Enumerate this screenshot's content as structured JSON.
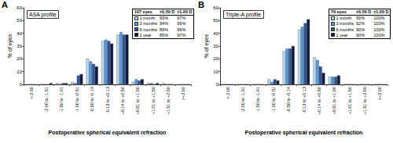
{
  "chart_data": [
    {
      "type": "bar",
      "panel_label": "A",
      "title": "ASA profile",
      "x_label": "Postoperative spherical equivalent refraction",
      "y_label": "% of eyes",
      "categories": [
        "<-2.00",
        "-2.00 to -1.51",
        "-1.50 to -1.01",
        "-1.00 to -0.51",
        "-0.50 to -0.14",
        "-0.13 to +0.13",
        "+0.14 to +0.50",
        "+0.51 to +1.00",
        "+1.01 to +1.50",
        "+1.51 to +2.00",
        ">+2.00"
      ],
      "series": [
        {
          "name": "1 month",
          "color": "#bdd7ee",
          "values": [
            0,
            0,
            1,
            2,
            20,
            34,
            39,
            2,
            1,
            1,
            0
          ]
        },
        {
          "name": "3 months",
          "color": "#5b9bd5",
          "values": [
            0,
            0,
            0,
            1,
            18,
            35,
            41,
            4,
            1,
            0,
            0
          ]
        },
        {
          "name": "6 months",
          "color": "#2f5597",
          "values": [
            0,
            0,
            1,
            7,
            16,
            34,
            39,
            3,
            0,
            0,
            0
          ]
        },
        {
          "name": "1 year",
          "color": "#0b1a45",
          "values": [
            0,
            1,
            1,
            8,
            14,
            32,
            39,
            4,
            1,
            0,
            0
          ]
        }
      ],
      "ylim": [
        0,
        60
      ],
      "yticks": [
        0,
        10,
        20,
        30,
        40,
        50,
        60
      ],
      "grid": false,
      "legend": "upper right",
      "table": {
        "header": [
          "107 eyes",
          "±0.50 D",
          "±1.00 D"
        ],
        "rows": [
          [
            "93%",
            "97%"
          ],
          [
            "94%",
            "99%"
          ],
          [
            "89%",
            "99%"
          ],
          [
            "85%",
            "97%"
          ]
        ]
      }
    },
    {
      "type": "bar",
      "panel_label": "B",
      "title": "Triple-A profile",
      "x_label": "Postoperative spherical equivalent refraction",
      "y_label": "% of eyes",
      "categories": [
        "<-2.00",
        "-2.00 to -1.51",
        "-1.50 to -1.01",
        "-1.00 to -0.51",
        "-0.50 to -0.14",
        "-0.13 to +0.13",
        "+0.14 to +0.50",
        "+0.51 to +1.00",
        "+1.01 to +1.50",
        "+1.51 to +2.00",
        ">+2.00"
      ],
      "series": [
        {
          "name": "1 month",
          "color": "#bdd7ee",
          "values": [
            0,
            0,
            0,
            4,
            26,
            43,
            21,
            6,
            0,
            0,
            0
          ]
        },
        {
          "name": "3 months",
          "color": "#5b9bd5",
          "values": [
            0,
            0,
            0,
            2,
            28,
            45,
            19,
            6,
            0,
            0,
            0
          ]
        },
        {
          "name": "6 months",
          "color": "#2f5597",
          "values": [
            0,
            0,
            0,
            4,
            28,
            48,
            14,
            6,
            0,
            0,
            0
          ]
        },
        {
          "name": "1 year",
          "color": "#0b1a45",
          "values": [
            0,
            0,
            0,
            3,
            30,
            51,
            9,
            7,
            0,
            0,
            0
          ]
        }
      ],
      "ylim": [
        0,
        60
      ],
      "yticks": [
        0,
        10,
        20,
        30,
        40,
        50,
        60
      ],
      "grid": false,
      "legend": "upper right",
      "table": {
        "header": [
          "79 eyes",
          "±0.50 D",
          "±1.00 D"
        ],
        "rows": [
          [
            "90%",
            "100%"
          ],
          [
            "92%",
            "100%"
          ],
          [
            "90%",
            "100%"
          ],
          [
            "90%",
            "100%"
          ]
        ]
      }
    }
  ]
}
